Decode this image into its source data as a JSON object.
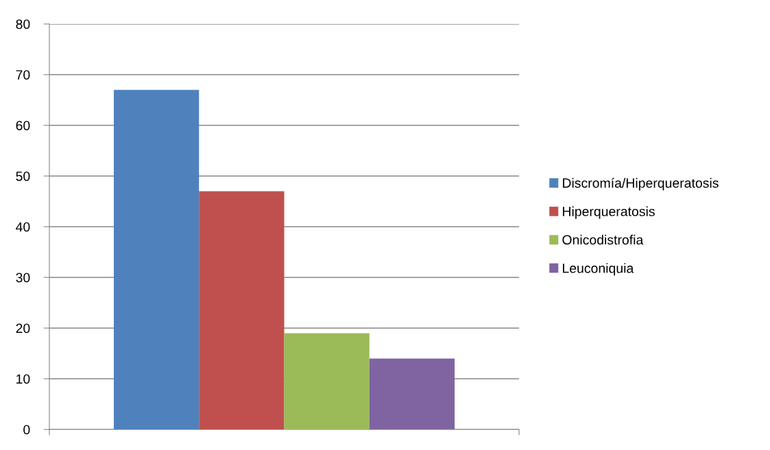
{
  "chart_data": {
    "type": "bar",
    "categories": [
      null
    ],
    "series": [
      {
        "name": "Discromía/Hiperqueratosis",
        "color": "#4f81bd",
        "values": [
          67
        ]
      },
      {
        "name": "Hiperqueratosis",
        "color": "#c0504d",
        "values": [
          47
        ]
      },
      {
        "name": "Onicodistrofia",
        "color": "#9bbb59",
        "values": [
          19
        ]
      },
      {
        "name": "Leuconiquia",
        "color": "#8064a2",
        "values": [
          14
        ]
      }
    ],
    "ylim": [
      0,
      80
    ],
    "yticks": [
      0,
      10,
      20,
      30,
      40,
      50,
      60,
      70,
      80
    ],
    "grid": "y",
    "legend": "right"
  }
}
